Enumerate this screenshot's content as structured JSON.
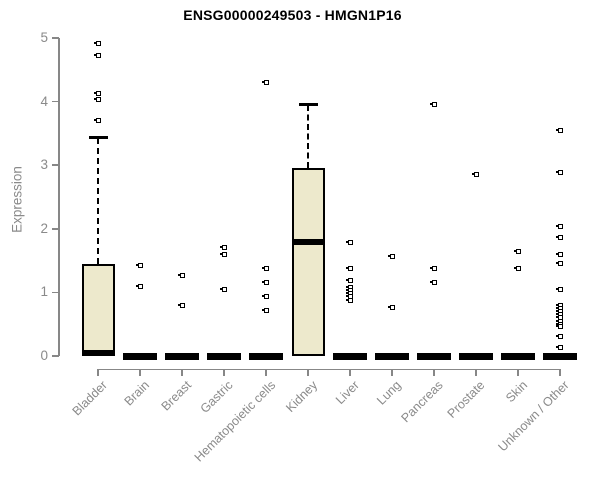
{
  "chart_data": {
    "type": "boxplot",
    "title": "ENSG00000249503 - HMGN1P16",
    "ylabel": "Expression",
    "xlabel": "",
    "ylim": [
      0,
      5
    ],
    "yticks": [
      0,
      1,
      2,
      3,
      4,
      5
    ],
    "grid": false,
    "legend": "none",
    "categories": [
      "Bladder",
      "Brain",
      "Breast",
      "Gastric",
      "Hematopoietic cells",
      "Kidney",
      "Liver",
      "Lung",
      "Pancreas",
      "Prostate",
      "Skin",
      "Unknown / Other"
    ],
    "series": [
      {
        "category": "Bladder",
        "q1": 0,
        "median": 0.05,
        "q3": 1.44,
        "whisker_low": 0,
        "whisker_high": 3.43,
        "outliers": [
          4.92,
          4.72,
          4.13,
          4.03,
          3.7
        ]
      },
      {
        "category": "Brain",
        "q1": 0,
        "median": 0,
        "q3": 0,
        "whisker_low": 0,
        "whisker_high": 0,
        "outliers": [
          1.43,
          1.1
        ]
      },
      {
        "category": "Breast",
        "q1": 0,
        "median": 0,
        "q3": 0,
        "whisker_low": 0,
        "whisker_high": 0,
        "outliers": [
          1.27,
          0.79
        ]
      },
      {
        "category": "Gastric",
        "q1": 0,
        "median": 0,
        "q3": 0,
        "whisker_low": 0,
        "whisker_high": 0,
        "outliers": [
          1.7,
          1.6,
          1.04
        ]
      },
      {
        "category": "Hematopoietic cells",
        "q1": 0,
        "median": 0,
        "q3": 0,
        "whisker_low": 0,
        "whisker_high": 0,
        "outliers": [
          4.3,
          1.37,
          1.16,
          0.94,
          0.71
        ]
      },
      {
        "category": "Kidney",
        "q1": 0,
        "median": 1.8,
        "q3": 2.96,
        "whisker_low": 0,
        "whisker_high": 3.95,
        "outliers": []
      },
      {
        "category": "Liver",
        "q1": 0,
        "median": 0,
        "q3": 0,
        "whisker_low": 0,
        "whisker_high": 0,
        "outliers": [
          1.78,
          1.37,
          1.18,
          1.08,
          1.03,
          0.98,
          0.93,
          0.88
        ]
      },
      {
        "category": "Lung",
        "q1": 0,
        "median": 0,
        "q3": 0,
        "whisker_low": 0,
        "whisker_high": 0,
        "outliers": [
          1.57,
          0.77
        ]
      },
      {
        "category": "Pancreas",
        "q1": 0,
        "median": 0,
        "q3": 0,
        "whisker_low": 0,
        "whisker_high": 0,
        "outliers": [
          3.95,
          1.38,
          1.15
        ]
      },
      {
        "category": "Prostate",
        "q1": 0,
        "median": 0,
        "q3": 0,
        "whisker_low": 0,
        "whisker_high": 0,
        "outliers": [
          2.86
        ]
      },
      {
        "category": "Skin",
        "q1": 0,
        "median": 0,
        "q3": 0,
        "whisker_low": 0,
        "whisker_high": 0,
        "outliers": [
          1.65,
          1.37
        ]
      },
      {
        "category": "Unknown / Other",
        "q1": 0,
        "median": 0,
        "q3": 0,
        "whisker_low": 0,
        "whisker_high": 0,
        "outliers": [
          3.55,
          2.89,
          2.04,
          1.86,
          1.6,
          1.45,
          1.04,
          0.8,
          0.75,
          0.7,
          0.65,
          0.6,
          0.55,
          0.5,
          0.46,
          0.31,
          0.14
        ]
      }
    ]
  },
  "colors": {
    "box_fill": "#EDE9CC",
    "box_border": "#000000",
    "axis_gray": "#878787",
    "label_gray": "#8a8a8a",
    "title_color": "#000000",
    "background": "#ffffff"
  }
}
